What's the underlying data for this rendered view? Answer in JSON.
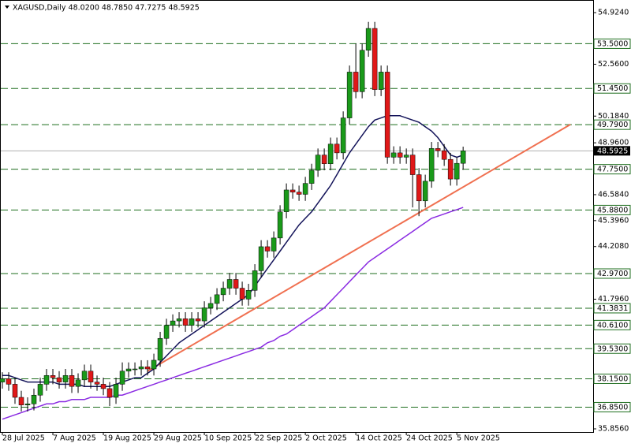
{
  "chart_data": {
    "type": "candlestick",
    "title": "XAGUSD,Daily  48.0200 48.7850 47.7275 48.5925",
    "categories": [
      "28 Jul 2025",
      null,
      null,
      null,
      null,
      null,
      null,
      null,
      "7 Aug 2025",
      null,
      null,
      null,
      null,
      null,
      null,
      null,
      "19 Aug 2025",
      null,
      null,
      null,
      null,
      null,
      null,
      null,
      "29 Aug 2025",
      null,
      null,
      null,
      null,
      null,
      null,
      null,
      "10 Sep 2025",
      null,
      null,
      null,
      null,
      null,
      null,
      null,
      "22 Sep 2025",
      null,
      null,
      null,
      null,
      null,
      null,
      null,
      "2 Oct 2025",
      null,
      null,
      null,
      null,
      null,
      null,
      null,
      "14 Oct 2025",
      null,
      null,
      null,
      null,
      null,
      null,
      null,
      "24 Oct 2025",
      null,
      null,
      null,
      null,
      null,
      null,
      null,
      "5 Nov 2025",
      null
    ],
    "open": [
      38.0,
      38.15,
      37.9,
      37.3,
      36.95,
      37.0,
      37.4,
      37.9,
      38.3,
      38.2,
      38.0,
      38.3,
      37.8,
      38.1,
      38.5,
      38.0,
      37.9,
      37.7,
      37.3,
      37.9,
      38.5,
      38.6,
      38.6,
      38.7,
      38.6,
      39.0,
      40.0,
      40.6,
      40.8,
      40.9,
      40.6,
      40.9,
      40.8,
      41.4,
      41.6,
      42.0,
      42.3,
      42.7,
      42.3,
      41.8,
      42.2,
      43.1,
      44.2,
      44.0,
      44.6,
      45.8,
      46.8,
      46.7,
      46.6,
      47.1,
      47.7,
      48.4,
      48.0,
      48.9,
      48.5,
      50.1,
      52.2,
      51.3,
      53.2,
      54.2,
      51.4,
      52.2,
      48.3,
      48.5,
      48.3,
      48.4,
      47.5,
      46.3,
      47.2,
      48.7,
      48.6,
      48.2,
      47.3,
      48.02
    ],
    "high": [
      38.45,
      38.45,
      38.2,
      37.6,
      37.3,
      37.7,
      38.2,
      38.6,
      38.6,
      38.5,
      38.6,
      38.6,
      38.4,
      38.8,
      38.8,
      38.3,
      38.2,
      38.0,
      38.2,
      38.9,
      38.9,
      38.9,
      39.0,
      39.0,
      39.3,
      40.3,
      40.9,
      41.1,
      41.2,
      41.2,
      41.2,
      41.2,
      41.7,
      41.9,
      42.3,
      42.6,
      43.0,
      43.0,
      42.6,
      42.5,
      43.4,
      44.5,
      44.5,
      44.9,
      46.1,
      47.1,
      47.1,
      47.0,
      47.4,
      48.0,
      48.7,
      48.7,
      49.2,
      49.2,
      50.4,
      52.5,
      53.5,
      53.5,
      54.5,
      54.5,
      52.5,
      52.5,
      48.8,
      48.8,
      48.7,
      48.7,
      47.8,
      47.5,
      49.0,
      49.0,
      48.9,
      48.5,
      48.3,
      48.785
    ],
    "low": [
      37.7,
      37.6,
      37.0,
      36.65,
      36.65,
      36.7,
      37.1,
      37.6,
      37.9,
      37.7,
      37.7,
      37.5,
      37.5,
      37.8,
      37.7,
      37.6,
      37.4,
      36.9,
      37.0,
      37.6,
      38.2,
      38.3,
      38.3,
      38.3,
      38.3,
      38.7,
      39.7,
      40.3,
      40.5,
      40.3,
      40.3,
      40.5,
      40.5,
      41.1,
      41.3,
      41.7,
      42.0,
      42.0,
      41.5,
      41.5,
      41.9,
      42.8,
      43.7,
      43.7,
      44.3,
      45.5,
      46.4,
      46.3,
      46.3,
      46.8,
      47.4,
      47.7,
      47.7,
      48.2,
      48.2,
      49.8,
      51.0,
      51.0,
      52.9,
      51.1,
      51.1,
      48.0,
      48.0,
      48.0,
      48.0,
      46.0,
      45.6,
      46.0,
      46.9,
      48.3,
      47.9,
      47.0,
      47.0,
      47.7275
    ],
    "close": [
      38.15,
      37.9,
      37.3,
      36.95,
      37.0,
      37.4,
      37.9,
      38.3,
      38.2,
      38.0,
      38.3,
      37.8,
      38.1,
      38.5,
      38.0,
      37.9,
      37.7,
      37.3,
      37.9,
      38.5,
      38.6,
      38.6,
      38.7,
      38.6,
      39.0,
      40.0,
      40.6,
      40.8,
      40.9,
      40.6,
      40.9,
      40.8,
      41.4,
      41.6,
      42.0,
      42.3,
      42.7,
      42.3,
      41.8,
      42.2,
      43.1,
      44.2,
      44.0,
      44.6,
      45.8,
      46.8,
      46.7,
      46.6,
      47.1,
      47.7,
      48.4,
      48.0,
      48.9,
      48.5,
      50.1,
      52.2,
      51.3,
      53.2,
      54.2,
      51.4,
      52.2,
      48.3,
      48.5,
      48.3,
      48.4,
      47.5,
      46.3,
      47.2,
      48.7,
      48.6,
      48.2,
      47.3,
      48.02,
      48.5925
    ],
    "up_color": "#1a9a1a",
    "down_color": "#e01818",
    "lines": [
      {
        "color": "#14145a",
        "values": [
          38.3,
          38.3,
          38.2,
          38.1,
          38.0,
          38.0,
          38.0,
          38.0,
          38.0,
          37.9,
          37.9,
          37.9,
          37.9,
          37.8,
          37.8,
          37.8,
          37.8,
          37.8,
          37.9,
          38.0,
          38.1,
          38.2,
          38.2,
          38.4,
          38.6,
          38.9,
          39.2,
          39.5,
          39.8,
          40.0,
          40.2,
          40.4,
          40.6,
          40.8,
          41.0,
          41.2,
          41.4,
          41.6,
          41.8,
          42.0,
          42.4,
          42.8,
          43.2,
          43.6,
          44.0,
          44.4,
          44.8,
          45.2,
          45.5,
          45.8,
          46.2,
          46.6,
          47.0,
          47.5,
          48.0,
          48.5,
          48.9,
          49.3,
          49.7,
          50.0,
          50.1,
          50.2,
          50.2,
          50.2,
          50.1,
          50.0,
          49.9,
          49.7,
          49.5,
          49.2,
          48.8,
          48.4,
          48.3,
          48.4
        ]
      },
      {
        "color": "#8a2be2",
        "values": [
          36.3,
          36.4,
          36.5,
          36.6,
          36.7,
          36.8,
          36.9,
          37.0,
          37.0,
          37.1,
          37.1,
          37.2,
          37.2,
          37.2,
          37.3,
          37.3,
          37.3,
          37.3,
          37.4,
          37.4,
          37.5,
          37.6,
          37.7,
          37.8,
          37.9,
          38.0,
          38.1,
          38.2,
          38.3,
          38.4,
          38.5,
          38.6,
          38.7,
          38.8,
          38.9,
          39.0,
          39.1,
          39.2,
          39.3,
          39.4,
          39.5,
          39.6,
          39.8,
          39.9,
          40.1,
          40.2,
          40.4,
          40.6,
          40.8,
          41.0,
          41.2,
          41.4,
          41.7,
          42.0,
          42.3,
          42.6,
          42.9,
          43.2,
          43.5,
          43.7,
          43.9,
          44.1,
          44.3,
          44.5,
          44.7,
          44.9,
          45.1,
          45.3,
          45.5,
          45.6,
          45.7,
          45.8,
          45.9,
          46.0
        ]
      }
    ],
    "trendline": {
      "color": "#f07050",
      "x": [
        23,
        90
      ],
      "y": [
        38.5,
        49.8
      ]
    },
    "levels": [
      {
        "value": 53.5,
        "label": "53.5000"
      },
      {
        "value": 51.45,
        "label": "51.4500"
      },
      {
        "value": 49.79,
        "label": "49.7900"
      },
      {
        "value": 47.75,
        "label": "47.7500"
      },
      {
        "value": 45.88,
        "label": "45.8800"
      },
      {
        "value": 42.97,
        "label": "42.9700"
      },
      41.3831,
      {
        "value": 40.61,
        "label": "40.6100"
      },
      {
        "value": 39.53,
        "label": "39.5300"
      },
      {
        "value": 38.15,
        "label": "38.1500"
      },
      {
        "value": 36.85,
        "label": "36.8500"
      }
    ],
    "level_color": "#1e6e1e",
    "last_price": 48.5925,
    "xlim": [
      -0.375,
      93.6
    ],
    "ylim": [
      35.711,
      55.502
    ],
    "yticks": [
      {
        "value": 54.924,
        "label": "54.9240"
      },
      {
        "value": 52.56,
        "label": "52.5600"
      },
      {
        "value": 50.184,
        "label": "50.1840"
      },
      {
        "value": 48.96,
        "label": "48.9600"
      },
      {
        "value": 46.584,
        "label": "46.5840"
      },
      {
        "value": 45.396,
        "label": "45.3960"
      },
      {
        "value": 44.208,
        "label": "44.2080"
      },
      {
        "value": 41.796,
        "label": "41.7960"
      },
      {
        "value": 35.856,
        "label": "35.8560"
      }
    ]
  }
}
